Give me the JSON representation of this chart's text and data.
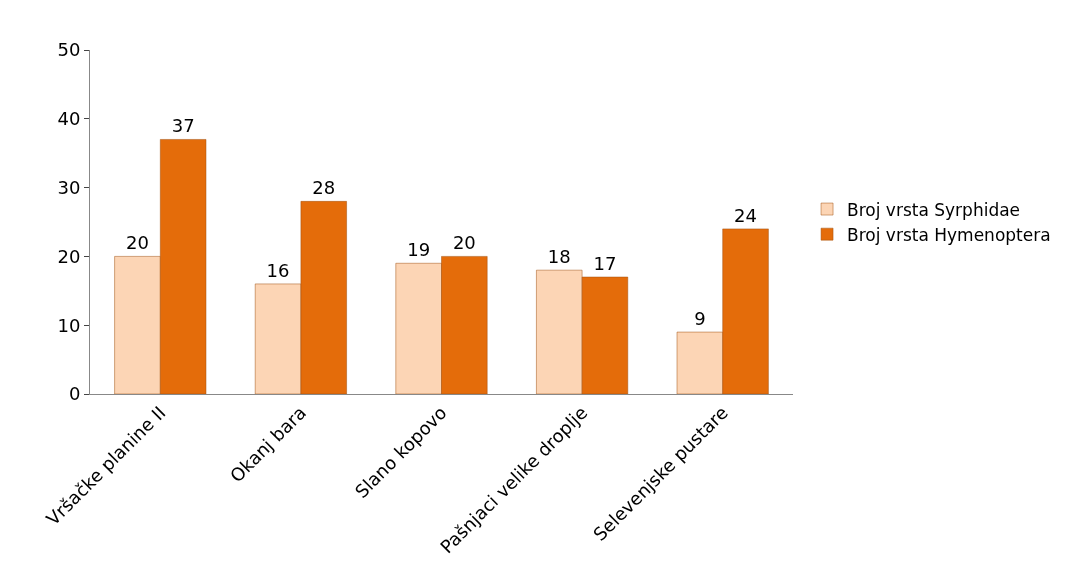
{
  "chart_data": {
    "type": "bar",
    "categories": [
      "Vršačke planine II",
      "Okanj bara",
      "Slano kopovo",
      "Pašnjaci velike droplje",
      "Selevenjske pustare"
    ],
    "series": [
      {
        "name": "Broj vrsta Syrphidae",
        "color": "#fcd5b5",
        "values": [
          20,
          16,
          19,
          18,
          9
        ]
      },
      {
        "name": "Broj vrsta Hymenoptera",
        "color": "#e46c0a",
        "values": [
          37,
          28,
          20,
          17,
          24
        ]
      }
    ],
    "ylim": [
      0,
      50
    ],
    "yticks": [
      0,
      10,
      20,
      30,
      40,
      50
    ],
    "grid": false,
    "legend": "right",
    "data_labels": true
  }
}
